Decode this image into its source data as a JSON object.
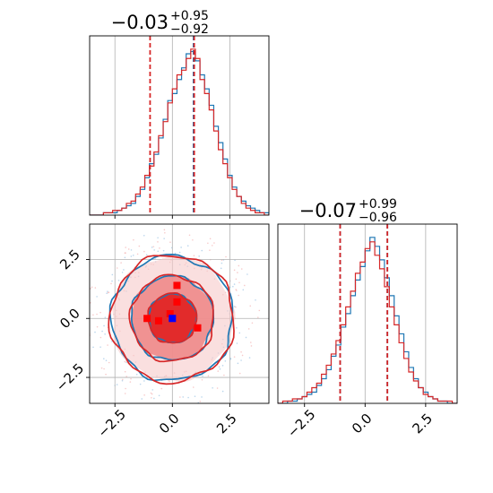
{
  "chart_data": [
    {
      "type": "histogram",
      "panel": "top-left",
      "title": {
        "value": "−0.03",
        "plus": "+0.95",
        "minus": "−0.92"
      },
      "xlim": [
        -3.6,
        4.2
      ],
      "grid": true,
      "bin_edges_start": -3.6,
      "bin_width": 0.2,
      "series": [
        {
          "color": "#1f77b4",
          "values": [
            0,
            0,
            0,
            1,
            1,
            1,
            2,
            3,
            4,
            5,
            8,
            11,
            16,
            22,
            26,
            33,
            41,
            49,
            52,
            58,
            63,
            69,
            70,
            66,
            60,
            54,
            47,
            38,
            31,
            24,
            17,
            12,
            8,
            6,
            4,
            3,
            2,
            1,
            1,
            0
          ]
        },
        {
          "color": "#d62728",
          "values": [
            0,
            0,
            0,
            1,
            1,
            2,
            2,
            3,
            5,
            6,
            9,
            12,
            17,
            21,
            27,
            34,
            40,
            48,
            54,
            60,
            62,
            67,
            71,
            67,
            58,
            52,
            45,
            36,
            28,
            22,
            16,
            11,
            8,
            5,
            3,
            2,
            1,
            1,
            0,
            0
          ]
        }
      ],
      "vlines": [
        {
          "x": -0.97,
          "color": "#d62728"
        },
        {
          "x": 0.92,
          "color": "#1f77b4"
        },
        {
          "x": 0.95,
          "color": "#d62728"
        }
      ]
    },
    {
      "type": "histogram",
      "panel": "bottom-right",
      "title": {
        "value": "−0.07",
        "plus": "+0.99",
        "minus": "−0.96"
      },
      "xlim": [
        -3.6,
        3.8
      ],
      "xticks": [
        "−2.5",
        "0.0",
        "2.5"
      ],
      "xtick_values": [
        -2.5,
        0.0,
        2.5
      ],
      "grid": true,
      "bin_edges_start": -3.6,
      "bin_width": 0.2,
      "series": [
        {
          "color": "#1f77b4",
          "values": [
            0,
            0,
            1,
            1,
            2,
            3,
            4,
            5,
            8,
            11,
            15,
            21,
            26,
            34,
            40,
            48,
            55,
            61,
            68,
            74,
            70,
            64,
            56,
            48,
            39,
            31,
            23,
            16,
            11,
            7,
            5,
            3,
            2,
            1,
            1,
            0,
            0
          ]
        },
        {
          "color": "#d62728",
          "values": [
            0,
            1,
            1,
            2,
            2,
            3,
            5,
            7,
            9,
            13,
            17,
            22,
            28,
            35,
            43,
            50,
            58,
            63,
            69,
            72,
            66,
            60,
            52,
            43,
            35,
            27,
            20,
            14,
            10,
            7,
            4,
            3,
            2,
            1,
            1,
            1,
            0
          ]
        }
      ],
      "vlines": [
        {
          "x": -1.03,
          "color": "#1f77b4"
        },
        {
          "x": -1.03,
          "color": "#d62728"
        },
        {
          "x": 0.92,
          "color": "#1f77b4"
        },
        {
          "x": 0.92,
          "color": "#d62728"
        }
      ]
    },
    {
      "type": "contour",
      "panel": "bottom-left",
      "xlim": [
        -3.6,
        4.2
      ],
      "ylim": [
        -3.6,
        4.0
      ],
      "xticks": [
        "−2.5",
        "0.0",
        "2.5"
      ],
      "xtick_values": [
        -2.5,
        0.0,
        2.5
      ],
      "yticks": [
        "−2.5",
        "0.0",
        "2.5"
      ],
      "ytick_values": [
        -2.5,
        0.0,
        2.5
      ],
      "grid": true,
      "levels": [
        {
          "sigma_radius": 0.9,
          "fill": "#e02020",
          "fill_opacity": 0.9
        },
        {
          "sigma_radius": 1.55,
          "fill": "#ee8a8a",
          "fill_opacity": 0.9
        },
        {
          "sigma_radius": 2.3,
          "fill": "#f6c9c9",
          "fill_opacity": 0.6
        }
      ],
      "contour_colors": [
        "#1f77b4",
        "#d62728"
      ],
      "markers": [
        {
          "x": 0.2,
          "y": 1.4,
          "color": "#ff0000"
        },
        {
          "x": 0.2,
          "y": 0.7,
          "color": "#ff0000"
        },
        {
          "x": -0.1,
          "y": 0.2,
          "color": "#ff0000"
        },
        {
          "x": -1.1,
          "y": 0.0,
          "color": "#ff0000"
        },
        {
          "x": -0.6,
          "y": -0.1,
          "color": "#ff0000"
        },
        {
          "x": 1.1,
          "y": -0.4,
          "color": "#ff0000"
        },
        {
          "x": 0.0,
          "y": 0.0,
          "color": "#0000ff"
        }
      ]
    }
  ]
}
